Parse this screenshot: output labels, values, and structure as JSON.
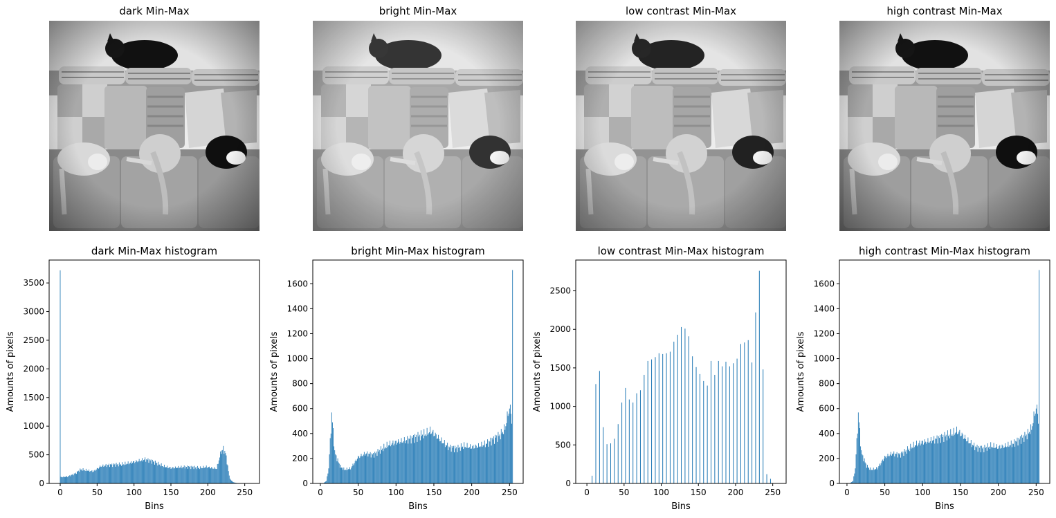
{
  "image_panels": [
    {
      "title": "dark Min-Max",
      "picture": "grayscale-photo-cats-on-sofa"
    },
    {
      "title": "bright Min-Max",
      "picture": "grayscale-photo-cats-on-sofa"
    },
    {
      "title": "low contrast Min-Max",
      "picture": "grayscale-photo-cats-on-sofa"
    },
    {
      "title": "high contrast Min-Max",
      "picture": "grayscale-photo-cats-on-sofa"
    }
  ],
  "colors": {
    "bar": "#1f77b4",
    "axis": "#000000",
    "photo_dark": "#111111",
    "photo_light": "#f2f2f2"
  },
  "chart_data": [
    {
      "type": "bar",
      "title": "dark Min-Max histogram",
      "xlabel": "Bins",
      "ylabel": "Amounts of pixels",
      "xlim": [
        -15,
        270
      ],
      "ylim": [
        0,
        3900
      ],
      "xticks": [
        0,
        50,
        100,
        150,
        200,
        250
      ],
      "yticks": [
        0,
        500,
        1000,
        1500,
        2000,
        2500,
        3000,
        3500
      ],
      "grid": false,
      "profile": {
        "spikes": [
          [
            0,
            3720
          ]
        ],
        "points": [
          [
            1,
            110
          ],
          [
            10,
            120
          ],
          [
            20,
            170
          ],
          [
            28,
            245
          ],
          [
            35,
            230
          ],
          [
            45,
            210
          ],
          [
            55,
            300
          ],
          [
            65,
            320
          ],
          [
            75,
            330
          ],
          [
            85,
            335
          ],
          [
            95,
            360
          ],
          [
            105,
            390
          ],
          [
            115,
            420
          ],
          [
            122,
            400
          ],
          [
            130,
            360
          ],
          [
            140,
            300
          ],
          [
            150,
            270
          ],
          [
            160,
            280
          ],
          [
            170,
            290
          ],
          [
            180,
            285
          ],
          [
            190,
            270
          ],
          [
            198,
            290
          ],
          [
            205,
            270
          ],
          [
            212,
            260
          ],
          [
            218,
            560
          ],
          [
            221,
            600
          ],
          [
            224,
            530
          ],
          [
            227,
            300
          ],
          [
            229,
            130
          ],
          [
            231,
            60
          ],
          [
            235,
            20
          ],
          [
            240,
            5
          ],
          [
            242,
            0
          ],
          [
            255,
            0
          ]
        ]
      }
    },
    {
      "type": "bar",
      "title": "bright Min-Max histogram",
      "xlabel": "Bins",
      "ylabel": "Amounts of pixels",
      "xlim": [
        -10,
        268
      ],
      "ylim": [
        0,
        1790
      ],
      "xticks": [
        0,
        50,
        100,
        150,
        200,
        250
      ],
      "yticks": [
        0,
        200,
        400,
        600,
        800,
        1000,
        1200,
        1400,
        1600
      ],
      "grid": false,
      "profile": {
        "spikes": [
          [
            254,
            1710
          ]
        ],
        "points": [
          [
            0,
            0
          ],
          [
            4,
            2
          ],
          [
            8,
            20
          ],
          [
            11,
            120
          ],
          [
            13,
            340
          ],
          [
            15,
            550
          ],
          [
            17,
            420
          ],
          [
            19,
            250
          ],
          [
            22,
            200
          ],
          [
            26,
            140
          ],
          [
            32,
            110
          ],
          [
            40,
            120
          ],
          [
            50,
            210
          ],
          [
            60,
            240
          ],
          [
            70,
            230
          ],
          [
            80,
            270
          ],
          [
            90,
            310
          ],
          [
            100,
            330
          ],
          [
            110,
            340
          ],
          [
            120,
            360
          ],
          [
            130,
            380
          ],
          [
            140,
            400
          ],
          [
            145,
            420
          ],
          [
            150,
            400
          ],
          [
            160,
            340
          ],
          [
            170,
            290
          ],
          [
            180,
            280
          ],
          [
            190,
            300
          ],
          [
            200,
            290
          ],
          [
            210,
            300
          ],
          [
            220,
            320
          ],
          [
            230,
            360
          ],
          [
            238,
            390
          ],
          [
            244,
            440
          ],
          [
            248,
            560
          ],
          [
            250,
            600
          ],
          [
            252,
            580
          ],
          [
            253,
            500
          ],
          [
            255,
            0
          ]
        ]
      }
    },
    {
      "type": "bar",
      "title": "low contrast Min-Max histogram",
      "xlabel": "Bins",
      "ylabel": "Amounts of pixels",
      "xlim": [
        -15,
        268
      ],
      "ylim": [
        0,
        2900
      ],
      "xticks": [
        0,
        50,
        100,
        150,
        200,
        250
      ],
      "yticks": [
        0,
        500,
        1000,
        1500,
        2000,
        2500
      ],
      "grid": false,
      "bins": [
        7,
        12,
        17,
        22,
        27,
        32,
        37,
        42,
        47,
        52,
        57,
        62,
        67,
        72,
        77,
        82,
        87,
        92,
        97,
        102,
        107,
        112,
        117,
        122,
        127,
        132,
        137,
        142,
        147,
        152,
        157,
        162,
        167,
        172,
        177,
        182,
        187,
        192,
        197,
        202,
        207,
        212,
        217,
        222,
        227,
        232,
        237,
        242,
        247
      ],
      "values": [
        100,
        1290,
        1460,
        730,
        510,
        520,
        580,
        770,
        1050,
        1240,
        1090,
        1050,
        1170,
        1210,
        1410,
        1590,
        1610,
        1640,
        1690,
        1680,
        1690,
        1710,
        1840,
        1930,
        2030,
        2010,
        1910,
        1650,
        1510,
        1420,
        1330,
        1270,
        1590,
        1410,
        1590,
        1520,
        1580,
        1520,
        1560,
        1620,
        1810,
        1830,
        1860,
        1570,
        2220,
        2760,
        1480,
        120,
        60
      ]
    },
    {
      "type": "bar",
      "title": "high contrast Min-Max histogram",
      "xlabel": "Bins",
      "ylabel": "Amounts of pixels",
      "xlim": [
        -10,
        268
      ],
      "ylim": [
        0,
        1790
      ],
      "xticks": [
        0,
        50,
        100,
        150,
        200,
        250
      ],
      "yticks": [
        0,
        200,
        400,
        600,
        800,
        1000,
        1200,
        1400,
        1600
      ],
      "grid": false,
      "profile": {
        "spikes": [
          [
            254,
            1710
          ]
        ],
        "points": [
          [
            0,
            0
          ],
          [
            4,
            2
          ],
          [
            8,
            20
          ],
          [
            11,
            120
          ],
          [
            13,
            340
          ],
          [
            15,
            550
          ],
          [
            17,
            420
          ],
          [
            19,
            250
          ],
          [
            22,
            200
          ],
          [
            26,
            140
          ],
          [
            32,
            110
          ],
          [
            40,
            120
          ],
          [
            50,
            210
          ],
          [
            60,
            240
          ],
          [
            70,
            230
          ],
          [
            80,
            270
          ],
          [
            90,
            310
          ],
          [
            100,
            330
          ],
          [
            110,
            340
          ],
          [
            120,
            360
          ],
          [
            130,
            380
          ],
          [
            140,
            400
          ],
          [
            145,
            420
          ],
          [
            150,
            400
          ],
          [
            160,
            340
          ],
          [
            170,
            290
          ],
          [
            180,
            280
          ],
          [
            190,
            300
          ],
          [
            200,
            290
          ],
          [
            210,
            300
          ],
          [
            220,
            320
          ],
          [
            230,
            360
          ],
          [
            238,
            390
          ],
          [
            244,
            440
          ],
          [
            248,
            560
          ],
          [
            250,
            600
          ],
          [
            252,
            580
          ],
          [
            253,
            500
          ],
          [
            255,
            0
          ]
        ]
      }
    }
  ]
}
